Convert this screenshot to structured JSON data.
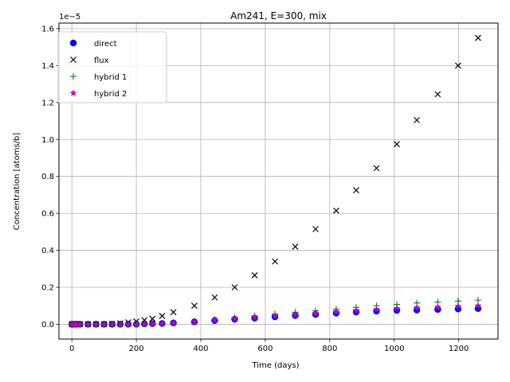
{
  "chart_data": {
    "type": "scatter",
    "title": "Am241, E=300, mix",
    "xlabel": "Time (days)",
    "ylabel": "Concentration [atoms/b]",
    "y_scale_label": "1e−5",
    "xlim": [
      -40,
      1322
    ],
    "ylim": [
      -0.08,
      1.63
    ],
    "y_multiplier": 1e-05,
    "x_ticks": [
      0,
      200,
      400,
      600,
      800,
      1000,
      1200
    ],
    "x_tick_labels": [
      "0",
      "200",
      "400",
      "600",
      "800",
      "1000",
      "1200"
    ],
    "y_ticks": [
      0.0,
      0.2,
      0.4,
      0.6,
      0.8,
      1.0,
      1.2,
      1.4,
      1.6
    ],
    "y_tick_labels": [
      "0.0",
      "0.2",
      "0.4",
      "0.6",
      "0.8",
      "1.0",
      "1.2",
      "1.4",
      "1.6"
    ],
    "grid": true,
    "legend_position": "top-left",
    "x": [
      0,
      5,
      10,
      15,
      25,
      50,
      75,
      100,
      125,
      150,
      175,
      200,
      225,
      250,
      280,
      315,
      380,
      443,
      505,
      567,
      630,
      693,
      756,
      820,
      882,
      945,
      1008,
      1070,
      1135,
      1198,
      1260
    ],
    "series": [
      {
        "name": "direct",
        "marker": "circle",
        "color": "#0000ff",
        "values": [
          0.0,
          0.0,
          0.0,
          0.0,
          0.0,
          0.0,
          0.0,
          0.0,
          0.0,
          0.0,
          0.0,
          0.0,
          0.002,
          0.003,
          0.004,
          0.007,
          0.013,
          0.02,
          0.027,
          0.033,
          0.04,
          0.047,
          0.053,
          0.06,
          0.066,
          0.071,
          0.075,
          0.077,
          0.08,
          0.083,
          0.085
        ]
      },
      {
        "name": "flux",
        "marker": "x",
        "color": "#000000",
        "values": [
          0.0,
          0.0,
          0.0,
          0.0,
          0.0,
          0.0,
          0.0,
          0.0,
          0.002,
          0.005,
          0.01,
          0.015,
          0.022,
          0.03,
          0.045,
          0.065,
          0.1,
          0.145,
          0.2,
          0.265,
          0.34,
          0.42,
          0.515,
          0.615,
          0.725,
          0.845,
          0.975,
          1.105,
          1.245,
          1.4,
          1.55
        ]
      },
      {
        "name": "hybrid 1",
        "marker": "plus",
        "color": "#008000",
        "values": [
          0.0,
          0.0,
          0.0,
          0.0,
          0.0,
          0.0,
          0.0,
          0.0,
          0.0,
          0.0,
          0.0,
          0.0,
          0.002,
          0.003,
          0.004,
          0.008,
          0.016,
          0.026,
          0.036,
          0.046,
          0.055,
          0.065,
          0.073,
          0.082,
          0.091,
          0.1,
          0.107,
          0.115,
          0.12,
          0.125,
          0.13
        ]
      },
      {
        "name": "hybrid 2",
        "marker": "star",
        "color": "#bf00bf",
        "values": [
          0.0,
          0.0,
          0.0,
          0.0,
          0.0,
          0.0,
          0.0,
          0.0,
          0.0,
          0.0,
          0.0,
          0.0,
          0.002,
          0.003,
          0.004,
          0.007,
          0.014,
          0.022,
          0.03,
          0.037,
          0.045,
          0.053,
          0.06,
          0.067,
          0.074,
          0.08,
          0.086,
          0.09,
          0.093,
          0.097,
          0.1
        ]
      }
    ]
  }
}
